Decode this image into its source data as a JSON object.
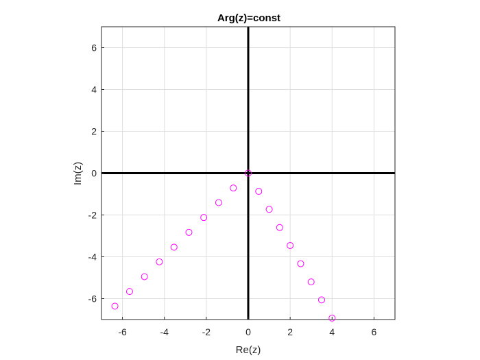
{
  "chart_data": {
    "type": "scatter",
    "title": "Arg(z)=const",
    "xlabel": "Re(z)",
    "ylabel": "Im(z)",
    "xlim": [
      -7,
      7
    ],
    "ylim": [
      -7,
      7
    ],
    "xticks": [
      -6,
      -4,
      -2,
      0,
      2,
      4,
      6
    ],
    "yticks": [
      -6,
      -4,
      -2,
      0,
      2,
      4,
      6
    ],
    "grid": true,
    "marker": "open-circle",
    "marker_color": "#ff00ff",
    "axis_line_color": "#000000",
    "series": [
      {
        "x": [
          -6.36,
          -5.66,
          -4.95,
          -4.24,
          -3.54,
          -2.83,
          -2.12,
          -1.41,
          -0.71,
          0,
          0.5,
          1.0,
          1.5,
          2.0,
          2.5,
          3.0,
          3.5,
          4.0
        ],
        "y": [
          -6.36,
          -5.66,
          -4.95,
          -4.24,
          -3.54,
          -2.83,
          -2.12,
          -1.41,
          -0.71,
          0,
          -0.87,
          -1.73,
          -2.6,
          -3.46,
          -4.33,
          -5.2,
          -6.06,
          -6.93
        ]
      }
    ]
  }
}
